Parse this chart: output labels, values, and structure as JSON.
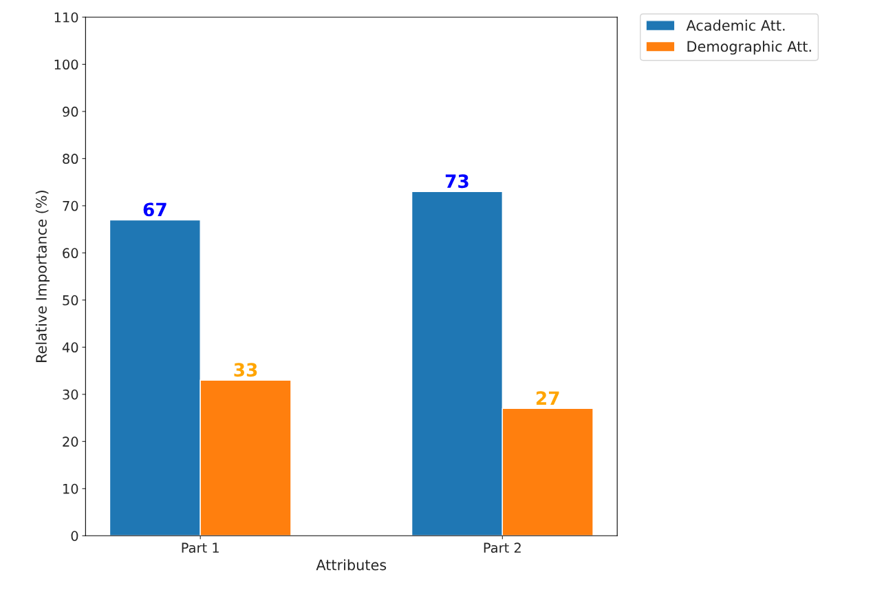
{
  "chart_data": {
    "type": "bar",
    "xlabel": "Attributes",
    "ylabel": "Relative Importance (%)",
    "categories": [
      "Part 1",
      "Part 2"
    ],
    "series": [
      {
        "name": "Academic Att.",
        "color": "#1f77b4",
        "values": [
          67,
          73
        ]
      },
      {
        "name": "Demographic Att.",
        "color": "#ff7f0e",
        "values": [
          33,
          27
        ]
      }
    ],
    "ylim": [
      0,
      110
    ],
    "yticks": [
      0,
      10,
      20,
      30,
      40,
      50,
      60,
      70,
      80,
      90,
      100,
      110
    ],
    "data_labels": true,
    "legend": "top right",
    "grid": false
  }
}
